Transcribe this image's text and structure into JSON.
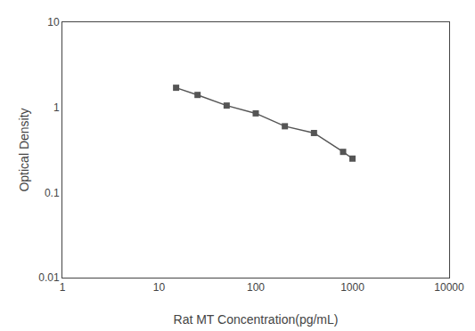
{
  "chart_data": {
    "type": "line",
    "x": [
      15,
      25,
      50,
      100,
      200,
      400,
      800,
      1000
    ],
    "values": [
      1.7,
      1.4,
      1.05,
      0.85,
      0.6,
      0.5,
      0.3,
      0.25
    ],
    "color": "#555555",
    "marker": "square",
    "xlabel": "Rat MT Concentration(pg/mL)",
    "ylabel": "Optical Density",
    "xlim": [
      1,
      10000
    ],
    "ylim": [
      0.01,
      10
    ],
    "xticks": [
      1,
      10,
      100,
      1000,
      10000
    ],
    "yticks": [
      0.01,
      0.1,
      1,
      10
    ],
    "log": true,
    "grid": false
  }
}
